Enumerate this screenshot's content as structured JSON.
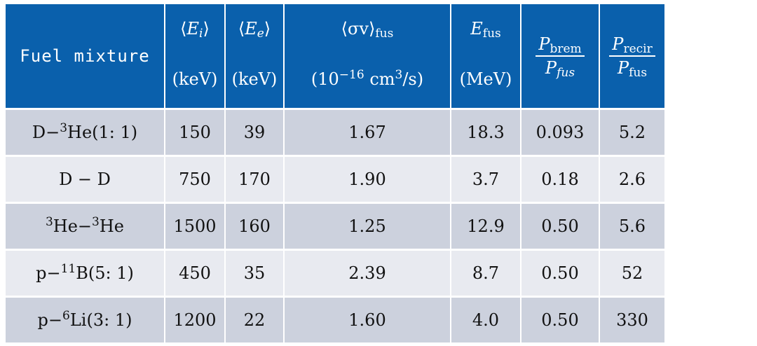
{
  "header": {
    "fuel_label": "Fuel mixture",
    "ei_sub": "i",
    "ei_unit": "(keV)",
    "ee_sub": "e",
    "ee_unit": "(keV)",
    "sv_sub": "fus",
    "sv_unit_pre": "(10",
    "sv_unit_exp": "−16",
    "sv_unit_mid": " cm",
    "sv_unit_exp2": "3",
    "sv_unit_post": "/s)",
    "efus_sub": "fus",
    "efus_unit": "(MeV)",
    "pbrem_num_sub": "brem",
    "pbrem_den_sub": "fus",
    "precir_num_sub": "recir",
    "precir_den_sub": "fus"
  },
  "rows": [
    {
      "fuel": {
        "pre": "D−",
        "sup": "3",
        "post": "He(1: 1)"
      },
      "ei": "150",
      "ee": "39",
      "sv": "1.67",
      "efus": "18.3",
      "pbrem": "0.093",
      "precir": "5.2"
    },
    {
      "fuel": {
        "pre": "D − D",
        "sup": "",
        "post": ""
      },
      "ei": "750",
      "ee": "170",
      "sv": "1.90",
      "efus": "3.7",
      "pbrem": "0.18",
      "precir": "2.6"
    },
    {
      "fuel": {
        "pre": "",
        "sup": "3",
        "post": "He−",
        "sup2": "3",
        "post2": "He"
      },
      "ei": "1500",
      "ee": "160",
      "sv": "1.25",
      "efus": "12.9",
      "pbrem": "0.50",
      "precir": "5.6"
    },
    {
      "fuel": {
        "pre": "p−",
        "sup": "11",
        "post": "B(5: 1)"
      },
      "ei": "450",
      "ee": "35",
      "sv": "2.39",
      "efus": "8.7",
      "pbrem": "0.50",
      "precir": "52"
    },
    {
      "fuel": {
        "pre": "p−",
        "sup": "6",
        "post": "Li(3: 1)"
      },
      "ei": "1200",
      "ee": "22",
      "sv": "1.60",
      "efus": "4.0",
      "pbrem": "0.50",
      "precir": "330"
    }
  ]
}
